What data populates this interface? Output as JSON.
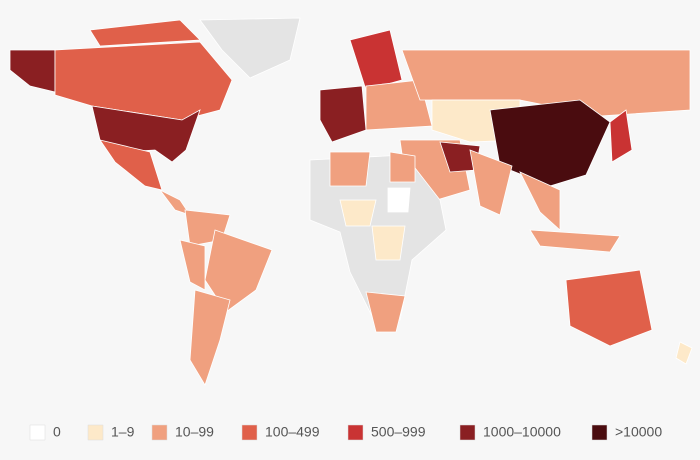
{
  "legend": [
    {
      "label": "0",
      "color": "#ffffff"
    },
    {
      "label": "1–9",
      "color": "#fde9c9"
    },
    {
      "label": "10–99",
      "color": "#f0a07f"
    },
    {
      "label": "100–499",
      "color": "#e0604a"
    },
    {
      "label": "500–999",
      "color": "#c93333"
    },
    {
      "label": "1000–10000",
      "color": "#8a1f22"
    },
    {
      "label": ">10000",
      "color": "#4a0c0f"
    }
  ]
}
